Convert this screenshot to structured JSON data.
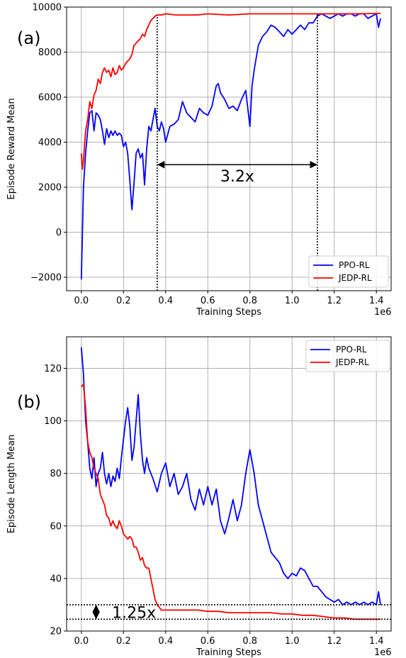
{
  "chart_data": [
    {
      "type": "line",
      "panel_label": "(a)",
      "xlabel": "Training Steps",
      "ylabel": "Episode Reward Mean",
      "x_scale_label": "1e6",
      "xlim": [
        -0.07,
        1.47
      ],
      "ylim": [
        -2600,
        10000
      ],
      "xticks": [
        0.0,
        0.2,
        0.4,
        0.6,
        0.8,
        1.0,
        1.2,
        1.4
      ],
      "xtick_labels": [
        "0.0",
        "0.2",
        "0.4",
        "0.6",
        "0.8",
        "1.0",
        "1.2",
        "1.4"
      ],
      "yticks": [
        -2000,
        0,
        2000,
        4000,
        6000,
        8000,
        10000
      ],
      "ytick_labels": [
        "−2000",
        "0",
        "2000",
        "4000",
        "6000",
        "8000",
        "10000"
      ],
      "grid": true,
      "legend_position": "bottom-right",
      "series": [
        {
          "name": "PPO-RL",
          "color": "#0000ff",
          "x": [
            0.0,
            0.01,
            0.02,
            0.03,
            0.04,
            0.05,
            0.06,
            0.07,
            0.08,
            0.09,
            0.1,
            0.11,
            0.12,
            0.13,
            0.14,
            0.15,
            0.16,
            0.17,
            0.18,
            0.19,
            0.2,
            0.21,
            0.22,
            0.23,
            0.24,
            0.25,
            0.26,
            0.27,
            0.28,
            0.29,
            0.3,
            0.31,
            0.32,
            0.33,
            0.34,
            0.35,
            0.36,
            0.37,
            0.38,
            0.39,
            0.4,
            0.42,
            0.44,
            0.46,
            0.48,
            0.5,
            0.52,
            0.54,
            0.56,
            0.58,
            0.6,
            0.62,
            0.64,
            0.65,
            0.66,
            0.68,
            0.7,
            0.72,
            0.74,
            0.76,
            0.78,
            0.8,
            0.81,
            0.82,
            0.84,
            0.86,
            0.88,
            0.9,
            0.92,
            0.94,
            0.96,
            0.98,
            1.0,
            1.02,
            1.04,
            1.06,
            1.08,
            1.1,
            1.12,
            1.14,
            1.16,
            1.18,
            1.2,
            1.22,
            1.24,
            1.26,
            1.28,
            1.3,
            1.32,
            1.34,
            1.36,
            1.38,
            1.4,
            1.41,
            1.42
          ],
          "y": [
            -2100,
            2000,
            3500,
            4500,
            5300,
            5400,
            4500,
            5300,
            5200,
            5000,
            4500,
            3900,
            4600,
            4200,
            4500,
            4300,
            4500,
            4300,
            4400,
            4300,
            3800,
            4000,
            3500,
            2300,
            1000,
            2200,
            3500,
            3700,
            3300,
            3500,
            2100,
            3700,
            4700,
            4500,
            5000,
            5500,
            4700,
            4500,
            4900,
            4600,
            4000,
            4700,
            4800,
            5000,
            5800,
            5300,
            5100,
            4900,
            5500,
            5300,
            5200,
            5600,
            6500,
            6600,
            6200,
            5900,
            5500,
            5600,
            5400,
            5900,
            6300,
            4700,
            6500,
            7200,
            8300,
            8700,
            8900,
            9200,
            9100,
            8900,
            8700,
            9000,
            8800,
            9000,
            9200,
            9000,
            9300,
            9300,
            9600,
            9700,
            9600,
            9500,
            9600,
            9700,
            9600,
            9700,
            9700,
            9600,
            9700,
            9700,
            9500,
            9600,
            9700,
            9100,
            9500
          ]
        },
        {
          "name": "JEDP-RL",
          "color": "#ff0000",
          "x": [
            0.0,
            0.005,
            0.01,
            0.02,
            0.03,
            0.04,
            0.05,
            0.06,
            0.07,
            0.08,
            0.09,
            0.1,
            0.11,
            0.12,
            0.13,
            0.14,
            0.15,
            0.16,
            0.17,
            0.18,
            0.19,
            0.2,
            0.21,
            0.22,
            0.23,
            0.24,
            0.25,
            0.26,
            0.27,
            0.28,
            0.29,
            0.3,
            0.31,
            0.32,
            0.33,
            0.34,
            0.35,
            0.36,
            0.38,
            0.4,
            0.45,
            0.5,
            0.55,
            0.6,
            0.7,
            0.8,
            0.9,
            1.0,
            1.1,
            1.2,
            1.3,
            1.42
          ],
          "y": [
            3500,
            2800,
            3200,
            4500,
            5000,
            5800,
            5500,
            6100,
            6300,
            6800,
            6600,
            7100,
            7300,
            7100,
            7200,
            6900,
            7300,
            7000,
            7100,
            7400,
            7200,
            7300,
            7500,
            7600,
            7700,
            7900,
            8300,
            8400,
            8500,
            8600,
            8800,
            8700,
            9000,
            9200,
            9400,
            9500,
            9600,
            9650,
            9650,
            9700,
            9650,
            9650,
            9650,
            9700,
            9650,
            9700,
            9700,
            9700,
            9700,
            9700,
            9700,
            9720
          ]
        }
      ],
      "annotations": [
        {
          "type": "vline",
          "x": 0.36,
          "y_from": -2600,
          "y_to": 9650,
          "style": "dotted"
        },
        {
          "type": "vline",
          "x": 1.12,
          "y_from": -2600,
          "y_to": 9700,
          "style": "dotted"
        },
        {
          "type": "double-arrow",
          "x_from": 0.36,
          "x_to": 1.12,
          "y": 3000
        },
        {
          "type": "text",
          "text": "3.2x",
          "x": 0.74,
          "y": 2500
        }
      ]
    },
    {
      "type": "line",
      "panel_label": "(b)",
      "xlabel": "Training Steps",
      "ylabel": "Episode Length Mean",
      "x_scale_label": "1e6",
      "xlim": [
        -0.07,
        1.47
      ],
      "ylim": [
        20,
        132
      ],
      "xticks": [
        0.0,
        0.2,
        0.4,
        0.6,
        0.8,
        1.0,
        1.2,
        1.4
      ],
      "xtick_labels": [
        "0.0",
        "0.2",
        "0.4",
        "0.6",
        "0.8",
        "1.0",
        "1.2",
        "1.4"
      ],
      "yticks": [
        20,
        40,
        60,
        80,
        100,
        120
      ],
      "ytick_labels": [
        "20",
        "40",
        "60",
        "80",
        "100",
        "120"
      ],
      "grid": true,
      "legend_position": "top-right",
      "series": [
        {
          "name": "PPO-RL",
          "color": "#0000ff",
          "x": [
            0.0,
            0.01,
            0.02,
            0.03,
            0.04,
            0.05,
            0.06,
            0.07,
            0.08,
            0.09,
            0.1,
            0.11,
            0.12,
            0.13,
            0.14,
            0.15,
            0.16,
            0.17,
            0.18,
            0.19,
            0.2,
            0.21,
            0.22,
            0.23,
            0.24,
            0.25,
            0.26,
            0.27,
            0.28,
            0.29,
            0.3,
            0.31,
            0.32,
            0.34,
            0.36,
            0.38,
            0.4,
            0.42,
            0.44,
            0.46,
            0.48,
            0.5,
            0.52,
            0.54,
            0.56,
            0.58,
            0.6,
            0.62,
            0.64,
            0.66,
            0.68,
            0.7,
            0.72,
            0.74,
            0.76,
            0.78,
            0.8,
            0.82,
            0.84,
            0.86,
            0.88,
            0.9,
            0.92,
            0.94,
            0.96,
            0.98,
            1.0,
            1.02,
            1.04,
            1.06,
            1.08,
            1.1,
            1.12,
            1.14,
            1.16,
            1.18,
            1.2,
            1.22,
            1.24,
            1.26,
            1.28,
            1.3,
            1.32,
            1.34,
            1.36,
            1.38,
            1.4,
            1.41,
            1.42
          ],
          "y": [
            128,
            118,
            100,
            92,
            82,
            78,
            86,
            75,
            80,
            82,
            88,
            80,
            76,
            80,
            75,
            79,
            77,
            82,
            78,
            86,
            93,
            100,
            105,
            98,
            85,
            90,
            100,
            110,
            95,
            85,
            80,
            86,
            82,
            78,
            73,
            80,
            84,
            75,
            80,
            72,
            75,
            80,
            70,
            66,
            74,
            68,
            75,
            68,
            74,
            62,
            57,
            63,
            70,
            62,
            68,
            80,
            89,
            80,
            68,
            62,
            56,
            50,
            48,
            46,
            42,
            40,
            42,
            41,
            44,
            43,
            40,
            37,
            37,
            35,
            33,
            32,
            31,
            32,
            30,
            31,
            30,
            31,
            30,
            31,
            30,
            31,
            30,
            35,
            30
          ]
        },
        {
          "name": "JEDP-RL",
          "color": "#ff0000",
          "x": [
            0.0,
            0.01,
            0.02,
            0.03,
            0.04,
            0.05,
            0.06,
            0.07,
            0.08,
            0.09,
            0.1,
            0.11,
            0.12,
            0.13,
            0.14,
            0.15,
            0.16,
            0.17,
            0.18,
            0.19,
            0.2,
            0.21,
            0.22,
            0.23,
            0.24,
            0.25,
            0.26,
            0.27,
            0.28,
            0.29,
            0.3,
            0.31,
            0.32,
            0.33,
            0.34,
            0.35,
            0.36,
            0.38,
            0.4,
            0.45,
            0.5,
            0.55,
            0.6,
            0.65,
            0.7,
            0.75,
            0.8,
            0.85,
            0.9,
            0.95,
            1.0,
            1.05,
            1.1,
            1.15,
            1.2,
            1.25,
            1.3,
            1.35,
            1.4,
            1.42
          ],
          "y": [
            113,
            114,
            105,
            92,
            88,
            86,
            82,
            80,
            78,
            72,
            70,
            68,
            64,
            63,
            60,
            62,
            60,
            59,
            62,
            60,
            57,
            56,
            55,
            56,
            55,
            52,
            52,
            50,
            47,
            48,
            45,
            44,
            44,
            40,
            36,
            32,
            30,
            28,
            28,
            28,
            28,
            28,
            27.5,
            27.5,
            27,
            27,
            27,
            27,
            27,
            26.5,
            26.5,
            26,
            26,
            25.5,
            25,
            25,
            24.5,
            24.5,
            24.5,
            24.5
          ]
        }
      ],
      "annotations": [
        {
          "type": "hline",
          "y": 30,
          "style": "dotted"
        },
        {
          "type": "hline",
          "y": 24.5,
          "style": "dotted"
        },
        {
          "type": "double-arrow",
          "x": 0.07,
          "y_from": 24.5,
          "y_to": 30
        },
        {
          "type": "text",
          "text": "1.25x",
          "x": 0.25,
          "y": 27.2
        }
      ]
    }
  ]
}
